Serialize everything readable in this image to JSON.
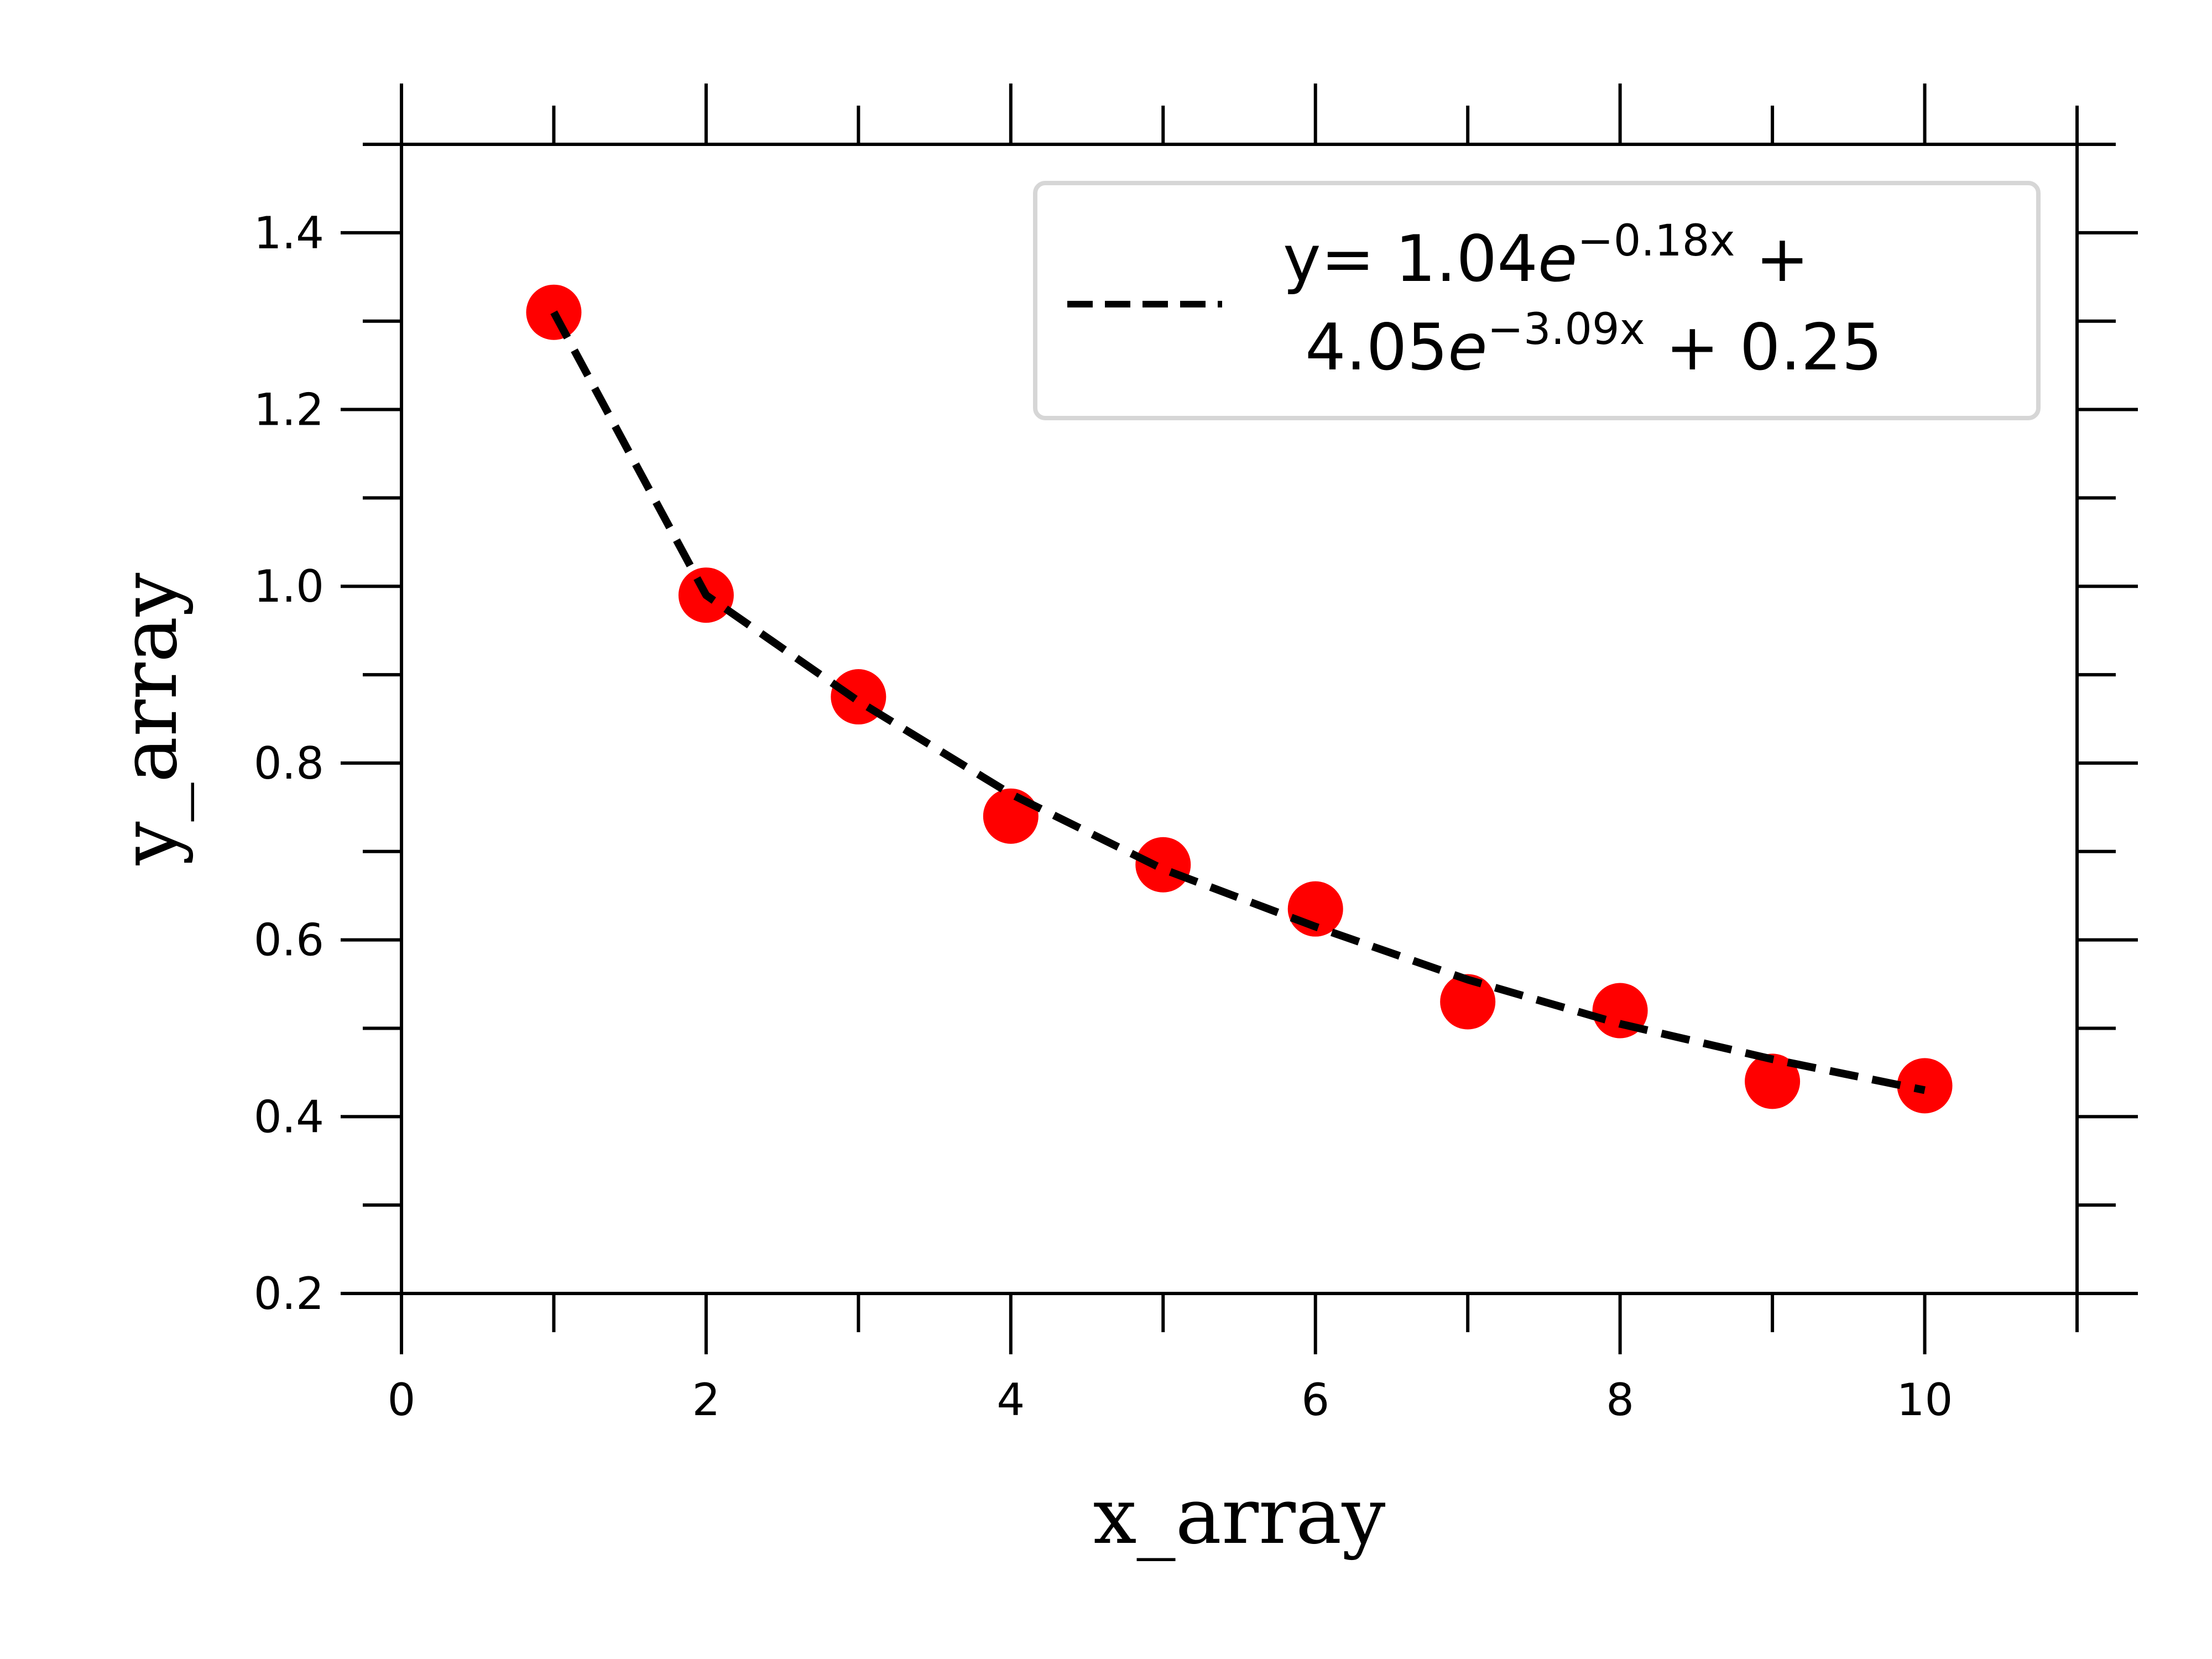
{
  "chart_data": {
    "type": "scatter",
    "xlabel": "x_array",
    "ylabel": "y_array",
    "xlim": [
      0,
      11
    ],
    "ylim": [
      0.2,
      1.5
    ],
    "x_ticks": [
      0,
      2,
      4,
      6,
      8,
      10
    ],
    "x_tick_labels": [
      "0",
      "2",
      "4",
      "6",
      "8",
      "10"
    ],
    "y_ticks": [
      0.2,
      0.4,
      0.6,
      0.8,
      1.0,
      1.2,
      1.4
    ],
    "y_tick_labels": [
      "0.2",
      "0.4",
      "0.6",
      "0.8",
      "1.0",
      "1.2",
      "1.4"
    ],
    "grid": false,
    "legend_position": "top-right",
    "series": [
      {
        "kind": "scatter",
        "color": "#ff0000",
        "x": [
          1,
          2,
          3,
          4,
          5,
          6,
          7,
          8,
          9,
          10
        ],
        "y": [
          1.31,
          0.99,
          0.875,
          0.74,
          0.685,
          0.635,
          0.53,
          0.52,
          0.44,
          0.435
        ]
      },
      {
        "kind": "line",
        "style": "dashed",
        "color": "#000000",
        "x": [
          1,
          2,
          3,
          4,
          5,
          6,
          7,
          8,
          9,
          10
        ],
        "y": [
          1.31,
          0.99,
          0.87,
          0.765,
          0.68,
          0.615,
          0.555,
          0.505,
          0.465,
          0.43
        ]
      }
    ],
    "legend": {
      "line1": {
        "prefix": "y= 1.04",
        "base": "e",
        "exponent": "−0.18x",
        "suffix": " +"
      },
      "line2": {
        "prefix": "4.05",
        "base": "e",
        "exponent": "−3.09x",
        "suffix": " + 0.25"
      }
    }
  }
}
